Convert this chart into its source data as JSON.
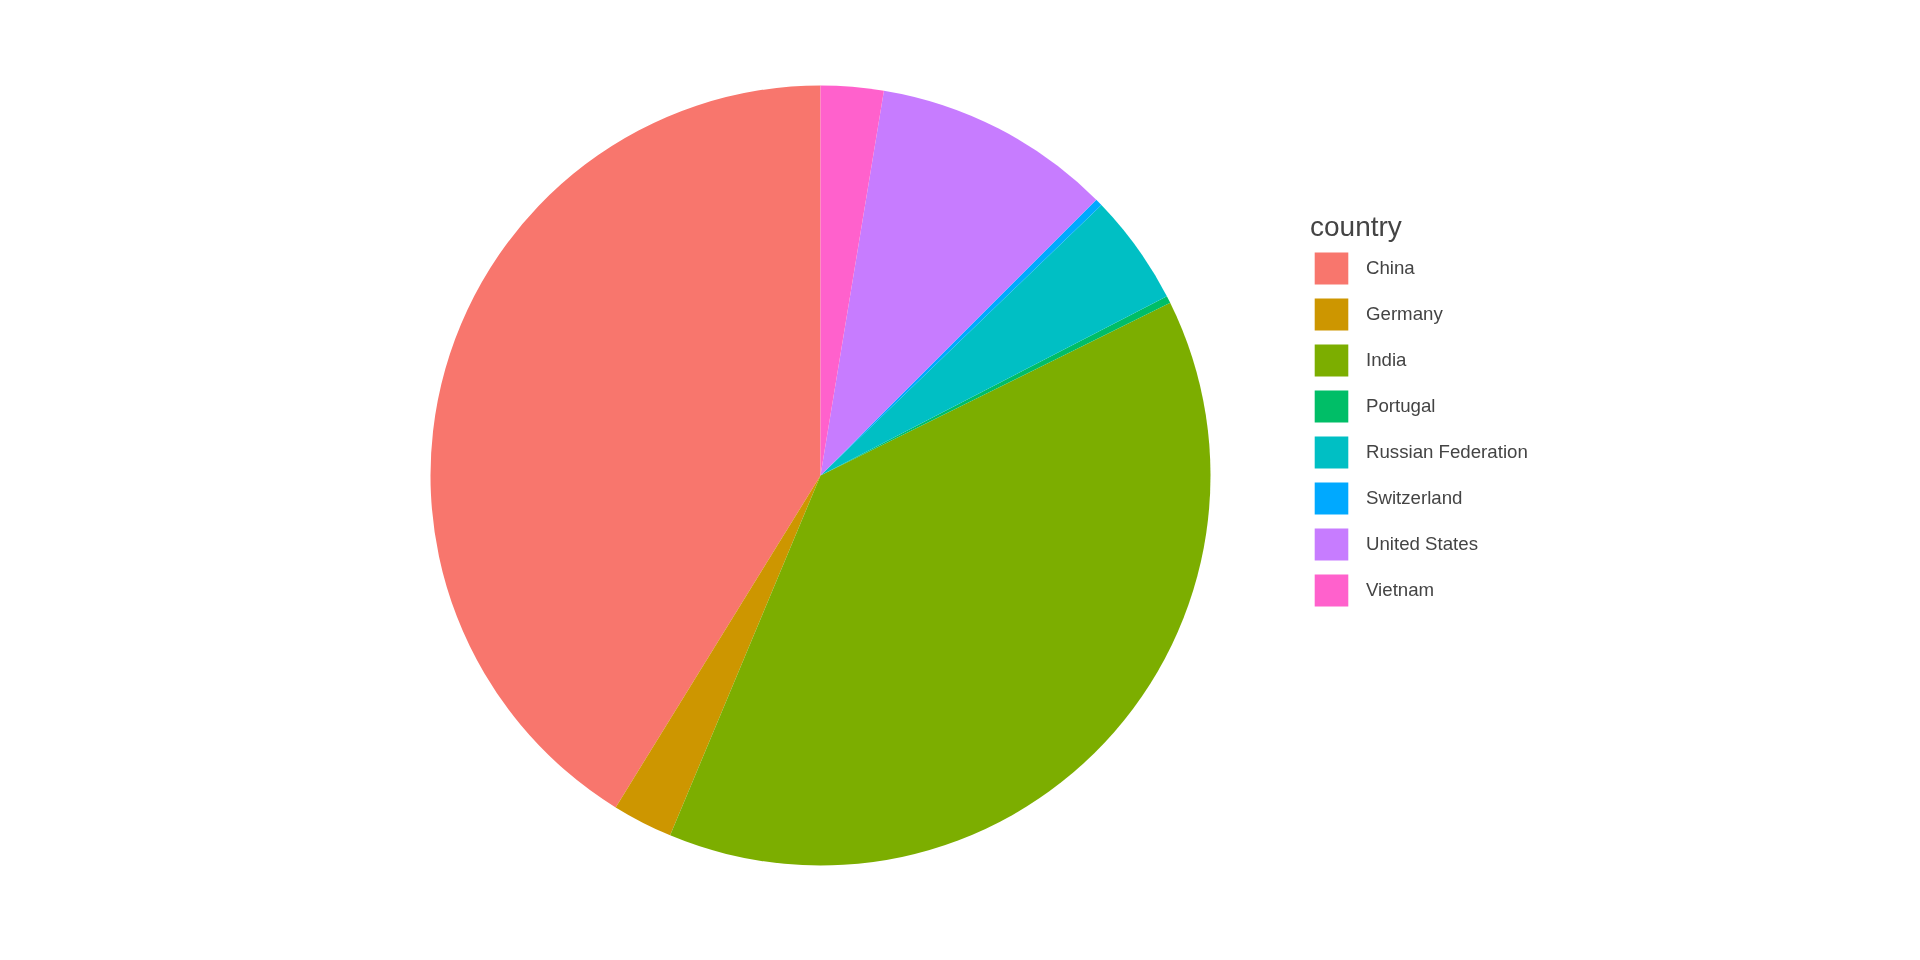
{
  "chart_data": {
    "type": "pie",
    "legend_title": "country",
    "legend": "right",
    "categories": [
      "China",
      "Germany",
      "India",
      "Portugal",
      "Russian Federation",
      "Switzerland",
      "United States",
      "Vietnam"
    ],
    "values": [
      41.2,
      2.5,
      38.6,
      0.3,
      4.6,
      0.3,
      9.9,
      2.6
    ],
    "colors": [
      "#f8766d",
      "#cd9600",
      "#7cae00",
      "#00be67",
      "#00bfc4",
      "#00a9ff",
      "#c77cff",
      "#ff61cc"
    ]
  }
}
